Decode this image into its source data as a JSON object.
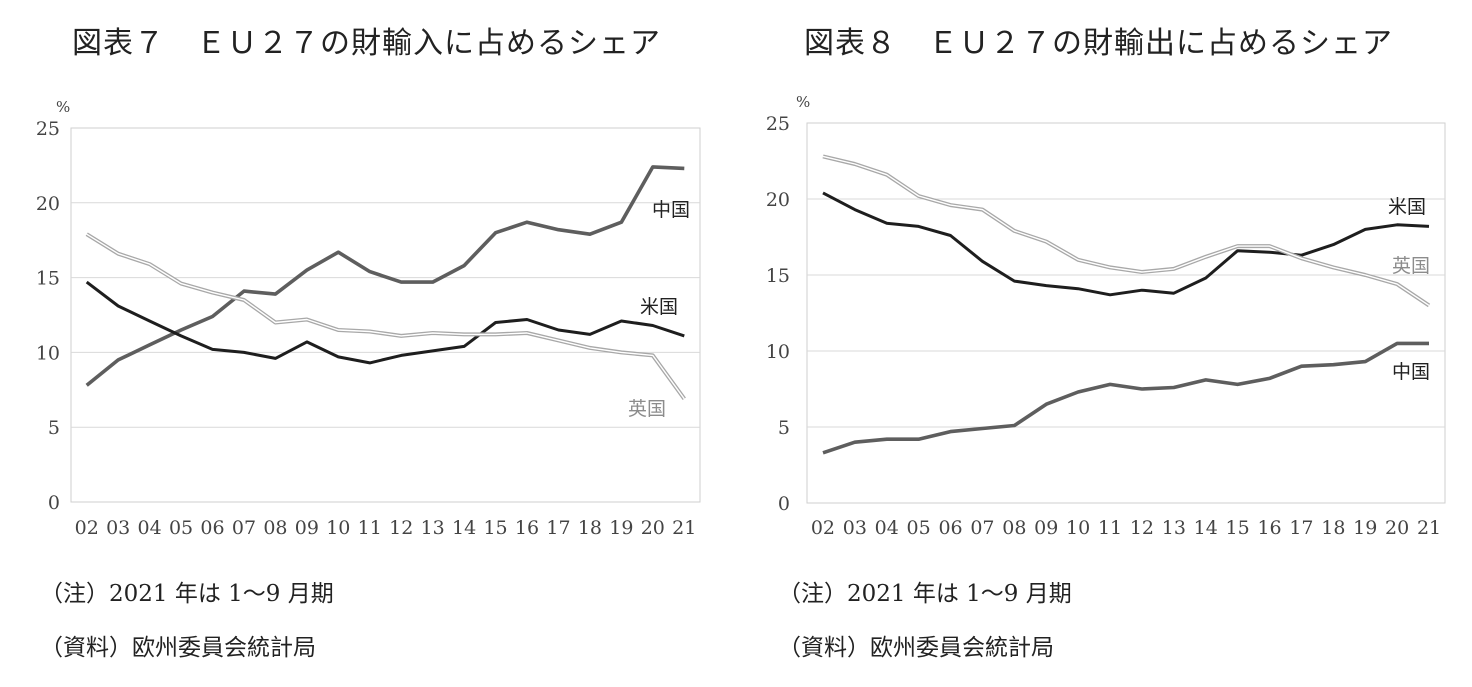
{
  "charts": [
    {
      "title": "図表７　ＥＵ２７の財輸入に占めるシェア",
      "note": "（注）2021 年は 1～9 月期",
      "source": "（資料）欧州委員会統計局",
      "chart_data": {
        "type": "line",
        "title": "図表７　ＥＵ２７の財輸入に占めるシェア",
        "xlabel": "",
        "ylabel": "%",
        "categories": [
          "02",
          "03",
          "04",
          "05",
          "06",
          "07",
          "08",
          "09",
          "10",
          "11",
          "12",
          "13",
          "14",
          "15",
          "16",
          "17",
          "18",
          "19",
          "20",
          "21"
        ],
        "ylim": [
          0,
          25
        ],
        "yticks": [
          0,
          5,
          10,
          15,
          20,
          25
        ],
        "grid": true,
        "series": [
          {
            "name": "中国",
            "color": "#5e5e5e",
            "values": [
              7.8,
              9.5,
              10.5,
              11.5,
              12.4,
              14.1,
              13.9,
              15.5,
              16.7,
              15.4,
              14.7,
              14.7,
              15.8,
              18.0,
              18.7,
              18.2,
              17.9,
              18.7,
              22.4,
              22.3
            ]
          },
          {
            "name": "米国",
            "color": "#1e1e1e",
            "values": [
              14.7,
              13.1,
              12.1,
              11.1,
              10.2,
              10.0,
              9.6,
              10.7,
              9.7,
              9.3,
              9.8,
              10.1,
              10.4,
              12.0,
              12.2,
              11.5,
              11.2,
              12.1,
              11.8,
              11.1
            ]
          },
          {
            "name": "英国",
            "color": "#a8a8a8",
            "values": [
              17.9,
              16.6,
              15.9,
              14.6,
              14.0,
              13.5,
              12.0,
              12.2,
              11.5,
              11.4,
              11.1,
              11.3,
              11.2,
              11.2,
              11.3,
              10.8,
              10.3,
              10.0,
              9.8,
              6.9
            ]
          }
        ]
      }
    },
    {
      "title": "図表８　ＥＵ２７の財輸出に占めるシェア",
      "note": "（注）2021 年は 1～9 月期",
      "source": "（資料）欧州委員会統計局",
      "chart_data": {
        "type": "line",
        "title": "図表８　ＥＵ２７の財輸出に占めるシェア",
        "xlabel": "",
        "ylabel": "%",
        "categories": [
          "02",
          "03",
          "04",
          "05",
          "06",
          "07",
          "08",
          "09",
          "10",
          "11",
          "12",
          "13",
          "14",
          "15",
          "16",
          "17",
          "18",
          "19",
          "20",
          "21"
        ],
        "ylim": [
          0,
          25
        ],
        "yticks": [
          0,
          5,
          10,
          15,
          20,
          25
        ],
        "grid": true,
        "series": [
          {
            "name": "米国",
            "color": "#1e1e1e",
            "values": [
              20.4,
              19.3,
              18.4,
              18.2,
              17.6,
              15.9,
              14.6,
              14.3,
              14.1,
              13.7,
              14.0,
              13.8,
              14.8,
              16.6,
              16.5,
              16.3,
              17.0,
              18.0,
              18.3,
              18.2
            ]
          },
          {
            "name": "英国",
            "color": "#a8a8a8",
            "values": [
              22.8,
              22.3,
              21.6,
              20.2,
              19.6,
              19.3,
              17.9,
              17.2,
              16.0,
              15.5,
              15.2,
              15.4,
              16.2,
              16.9,
              16.9,
              16.1,
              15.5,
              15.0,
              14.4,
              13.0
            ]
          },
          {
            "name": "中国",
            "color": "#5e5e5e",
            "values": [
              3.3,
              4.0,
              4.2,
              4.2,
              4.7,
              4.9,
              5.1,
              6.5,
              7.3,
              7.8,
              7.5,
              7.6,
              8.1,
              7.8,
              8.2,
              9.0,
              9.1,
              9.3,
              10.5,
              10.5
            ]
          }
        ]
      }
    }
  ]
}
